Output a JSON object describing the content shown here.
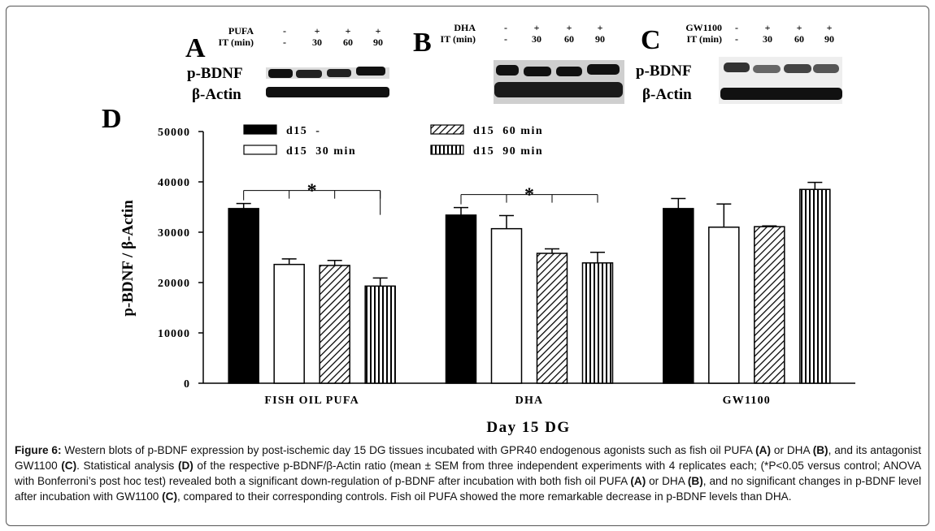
{
  "blots": [
    {
      "letter": "A",
      "treatment": "PUFA",
      "signs": [
        "-",
        "+",
        "+",
        "+"
      ],
      "it_label": "IT (min)",
      "times": [
        "-",
        "30",
        "60",
        "90"
      ],
      "rows": [
        "p-BDNF",
        "β-Actin"
      ]
    },
    {
      "letter": "B",
      "treatment": "DHA",
      "signs": [
        "-",
        "+",
        "+",
        "+"
      ],
      "it_label": "IT (min)",
      "times": [
        "-",
        "30",
        "60",
        "90"
      ]
    },
    {
      "letter": "C",
      "treatment": "GW1100",
      "signs": [
        "-",
        "+",
        "+",
        "+"
      ],
      "it_label": "IT (min)",
      "times": [
        "-",
        "30",
        "60",
        "90"
      ],
      "rows": [
        "p-BDNF",
        "β-Actin"
      ]
    }
  ],
  "chart_data": {
    "type": "bar",
    "panel_label": "D",
    "ylabel": "p-BDNF / β-Actin",
    "xlabel": "Day 15 DG",
    "categories": [
      "FISH OIL PUFA",
      "DHA",
      "GW1100"
    ],
    "series": [
      {
        "name": "d15  -",
        "color": "#000000",
        "pattern": "solid",
        "values": [
          34700,
          33400,
          34700
        ],
        "errors": [
          1000,
          1500,
          2000
        ]
      },
      {
        "name": "d15  30 min",
        "color": "#ffffff",
        "pattern": "none",
        "values": [
          23600,
          30700,
          31000
        ],
        "errors": [
          1100,
          2600,
          4600
        ]
      },
      {
        "name": "d15  60 min",
        "color": "#000000",
        "pattern": "diagonal",
        "values": [
          23400,
          25800,
          31100
        ],
        "errors": [
          1000,
          900,
          150
        ]
      },
      {
        "name": "d15  90 min",
        "color": "#000000",
        "pattern": "vertical",
        "values": [
          19300,
          23900,
          38500
        ],
        "errors": [
          1600,
          2100,
          1400
        ]
      }
    ],
    "ylim": [
      0,
      50000
    ],
    "yticks": [
      0,
      10000,
      20000,
      30000,
      40000,
      50000
    ],
    "significance": [
      {
        "label": "*",
        "category": "FISH OIL PUFA"
      },
      {
        "label": "*",
        "category": "DHA"
      }
    ]
  },
  "caption": [
    {
      "text": "Figure 6:",
      "bold": true
    },
    {
      "text": " Western blots of p-BDNF expression by post-ischemic day 15 DG tissues incubated with GPR40 endogenous agonists such as fish oil PUFA "
    },
    {
      "text": "(A)",
      "bold": true
    },
    {
      "text": " or DHA "
    },
    {
      "text": "(B)",
      "bold": true
    },
    {
      "text": ", and its antagonist GW1100 "
    },
    {
      "text": "(C)",
      "bold": true
    },
    {
      "text": ". Statistical analysis "
    },
    {
      "text": "(D)",
      "bold": true
    },
    {
      "text": " of the respective p-BDNF/β-Actin ratio (mean ± SEM from three independent experiments with 4 replicates each; (*P<0.05 versus control; ANOVA with Bonferroni’s post hoc test) revealed both a significant down-regulation of p-BDNF after incubation with both fish oil PUFA "
    },
    {
      "text": "(A)",
      "bold": true
    },
    {
      "text": " or DHA "
    },
    {
      "text": "(B)",
      "bold": true
    },
    {
      "text": ", and no significant changes in p-BDNF level after incubation with GW1100 "
    },
    {
      "text": "(C)",
      "bold": true
    },
    {
      "text": ", compared to their corresponding controls. Fish oil PUFA showed the more remarkable decrease in p-BDNF levels than DHA."
    }
  ]
}
